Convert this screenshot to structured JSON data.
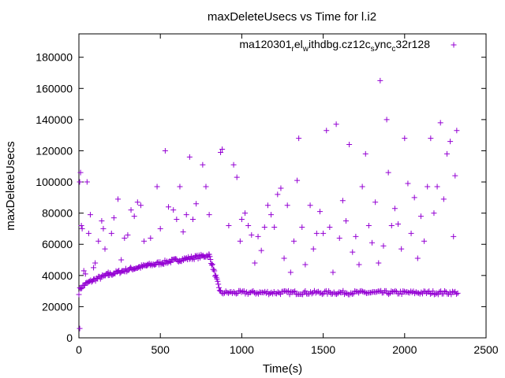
{
  "chart_data": {
    "type": "scatter",
    "title": "maxDeleteUsecs vs Time for l.i2",
    "xlabel": "Time(s)",
    "ylabel": "maxDeleteUsecs",
    "xlim": [
      0,
      2500
    ],
    "ylim": [
      0,
      195000
    ],
    "xticks": [
      0,
      500,
      1000,
      1500,
      2000,
      2500
    ],
    "yticks": [
      0,
      20000,
      40000,
      60000,
      80000,
      100000,
      120000,
      140000,
      160000,
      180000
    ],
    "marker": "+",
    "color": "#9400d3",
    "legend": {
      "position": "top-right",
      "label": "ma120301_rel_withdbg.cz12c_sync_c32r128"
    },
    "series": [
      {
        "name": "ma120301_rel_withdbg.cz12c_sync_c32r128",
        "components": [
          {
            "kind": "dense_band",
            "x_start": 0,
            "x_end": 800,
            "y_start": 29000,
            "y_end": 53000,
            "profile": "sqrt",
            "step": 6
          },
          {
            "kind": "dense_band",
            "x_start": 800,
            "x_end": 870,
            "y_start": 53000,
            "y_end": 29000,
            "profile": "linear",
            "step": 4
          },
          {
            "kind": "dense_band",
            "x_start": 870,
            "x_end": 2330,
            "y_start": 29000,
            "y_end": 29000,
            "profile": "flat",
            "step": 8
          }
        ],
        "outliers": [
          [
            5,
            6000
          ],
          [
            5,
            100000
          ],
          [
            10,
            106000
          ],
          [
            15,
            72000
          ],
          [
            20,
            70000
          ],
          [
            30,
            43000
          ],
          [
            40,
            41000
          ],
          [
            50,
            100000
          ],
          [
            60,
            67000
          ],
          [
            70,
            79000
          ],
          [
            90,
            45000
          ],
          [
            100,
            48000
          ],
          [
            120,
            62000
          ],
          [
            140,
            75000
          ],
          [
            150,
            70000
          ],
          [
            160,
            57000
          ],
          [
            180,
            42000
          ],
          [
            200,
            67000
          ],
          [
            215,
            77000
          ],
          [
            240,
            89000
          ],
          [
            260,
            50000
          ],
          [
            280,
            64000
          ],
          [
            300,
            66000
          ],
          [
            320,
            82000
          ],
          [
            340,
            78000
          ],
          [
            360,
            87000
          ],
          [
            380,
            85000
          ],
          [
            400,
            62000
          ],
          [
            420,
            47000
          ],
          [
            440,
            64000
          ],
          [
            480,
            97000
          ],
          [
            500,
            70000
          ],
          [
            530,
            120000
          ],
          [
            550,
            84000
          ],
          [
            580,
            82000
          ],
          [
            600,
            76000
          ],
          [
            620,
            97000
          ],
          [
            640,
            68000
          ],
          [
            660,
            79000
          ],
          [
            680,
            116000
          ],
          [
            700,
            76000
          ],
          [
            720,
            86000
          ],
          [
            760,
            111000
          ],
          [
            780,
            97000
          ],
          [
            800,
            79000
          ],
          [
            870,
            119000
          ],
          [
            880,
            121000
          ],
          [
            920,
            72000
          ],
          [
            950,
            111000
          ],
          [
            970,
            103000
          ],
          [
            990,
            62000
          ],
          [
            1000,
            76000
          ],
          [
            1020,
            80000
          ],
          [
            1040,
            72000
          ],
          [
            1060,
            66000
          ],
          [
            1080,
            48000
          ],
          [
            1100,
            65000
          ],
          [
            1120,
            56000
          ],
          [
            1140,
            71000
          ],
          [
            1160,
            85000
          ],
          [
            1180,
            79000
          ],
          [
            1200,
            71000
          ],
          [
            1220,
            92000
          ],
          [
            1240,
            96000
          ],
          [
            1260,
            51000
          ],
          [
            1280,
            85000
          ],
          [
            1300,
            42000
          ],
          [
            1320,
            62000
          ],
          [
            1340,
            101000
          ],
          [
            1350,
            128000
          ],
          [
            1370,
            71000
          ],
          [
            1390,
            47000
          ],
          [
            1420,
            85000
          ],
          [
            1440,
            57000
          ],
          [
            1460,
            67000
          ],
          [
            1480,
            81000
          ],
          [
            1500,
            67000
          ],
          [
            1520,
            133000
          ],
          [
            1540,
            71000
          ],
          [
            1560,
            42000
          ],
          [
            1580,
            137000
          ],
          [
            1600,
            64000
          ],
          [
            1620,
            88000
          ],
          [
            1640,
            75000
          ],
          [
            1660,
            124000
          ],
          [
            1680,
            55000
          ],
          [
            1700,
            65000
          ],
          [
            1720,
            47000
          ],
          [
            1740,
            97000
          ],
          [
            1760,
            118000
          ],
          [
            1780,
            72000
          ],
          [
            1800,
            61000
          ],
          [
            1820,
            87000
          ],
          [
            1840,
            48000
          ],
          [
            1850,
            165000
          ],
          [
            1870,
            59000
          ],
          [
            1890,
            140000
          ],
          [
            1900,
            106000
          ],
          [
            1920,
            72000
          ],
          [
            1940,
            83000
          ],
          [
            1960,
            73000
          ],
          [
            1980,
            57000
          ],
          [
            2000,
            128000
          ],
          [
            2020,
            99000
          ],
          [
            2040,
            67000
          ],
          [
            2060,
            90000
          ],
          [
            2080,
            51000
          ],
          [
            2100,
            78000
          ],
          [
            2120,
            62000
          ],
          [
            2140,
            97000
          ],
          [
            2160,
            128000
          ],
          [
            2180,
            80000
          ],
          [
            2200,
            97000
          ],
          [
            2220,
            138000
          ],
          [
            2240,
            89000
          ],
          [
            2260,
            118000
          ],
          [
            2280,
            126000
          ],
          [
            2300,
            65000
          ],
          [
            2310,
            104000
          ],
          [
            2320,
            133000
          ]
        ]
      }
    ]
  }
}
